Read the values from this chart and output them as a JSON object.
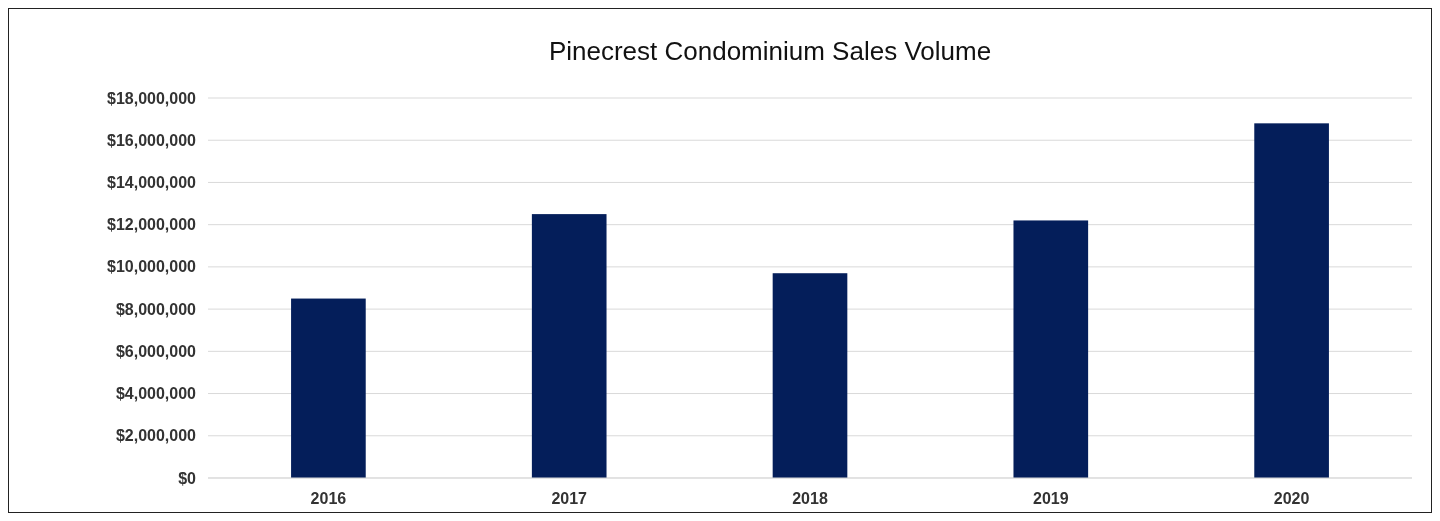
{
  "chart_data": {
    "type": "bar",
    "title": "Pinecrest Condominium Sales Volume",
    "categories": [
      "2016",
      "2017",
      "2018",
      "2019",
      "2020"
    ],
    "values": [
      8500000,
      12500000,
      9700000,
      12200000,
      16800000
    ],
    "color": "#041e5a",
    "ylim": [
      0,
      18000000
    ],
    "yticks": [
      {
        "value": 0,
        "label": "$0"
      },
      {
        "value": 2000000,
        "label": "$2,000,000"
      },
      {
        "value": 4000000,
        "label": "$4,000,000"
      },
      {
        "value": 6000000,
        "label": "$6,000,000"
      },
      {
        "value": 8000000,
        "label": "$8,000,000"
      },
      {
        "value": 10000000,
        "label": "$10,000,000"
      },
      {
        "value": 12000000,
        "label": "$12,000,000"
      },
      {
        "value": 14000000,
        "label": "$14,000,000"
      },
      {
        "value": 16000000,
        "label": "$16,000,000"
      },
      {
        "value": 18000000,
        "label": "$18,000,000"
      }
    ],
    "grid": "y"
  }
}
